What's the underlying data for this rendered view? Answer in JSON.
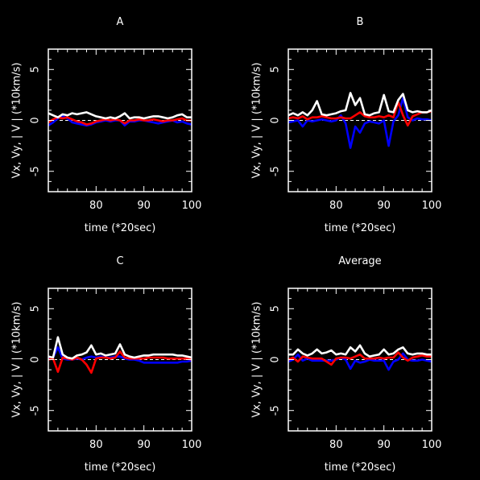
{
  "chart_data": [
    {
      "type": "line",
      "title": "A",
      "xlabel": "time (*20sec)",
      "ylabel": "Vx, Vy, | V | (*10km/s)",
      "xlim": [
        70,
        100
      ],
      "ylim": [
        -7,
        7
      ],
      "xticks": [
        80,
        90,
        100
      ],
      "yticks": [
        -5,
        0,
        5
      ],
      "zero_line": "dashed",
      "x": [
        70,
        71,
        72,
        73,
        74,
        75,
        76,
        77,
        78,
        79,
        80,
        81,
        82,
        83,
        84,
        85,
        86,
        87,
        88,
        89,
        90,
        91,
        92,
        93,
        94,
        95,
        96,
        97,
        98,
        99,
        100
      ],
      "series": [
        {
          "color": "#ffffff",
          "values": [
            0.7,
            0.5,
            0.3,
            0.6,
            0.5,
            0.7,
            0.6,
            0.7,
            0.8,
            0.6,
            0.4,
            0.3,
            0.2,
            0.3,
            0.2,
            0.4,
            0.7,
            0.2,
            0.3,
            0.3,
            0.2,
            0.3,
            0.4,
            0.4,
            0.3,
            0.2,
            0.3,
            0.5,
            0.6,
            0.3,
            0.3
          ]
        },
        {
          "color": "#ff0000",
          "values": [
            -0.2,
            0.1,
            0.3,
            0.2,
            0.3,
            0.1,
            -0.1,
            -0.2,
            -0.4,
            -0.3,
            -0.1,
            0.0,
            0.1,
            0.0,
            0.1,
            0.0,
            -0.3,
            0.0,
            0.0,
            0.1,
            0.0,
            0.0,
            0.1,
            0.0,
            -0.1,
            0.0,
            0.0,
            0.1,
            0.2,
            0.0,
            0.0
          ]
        },
        {
          "color": "#0000ff",
          "values": [
            -0.5,
            -0.2,
            0.2,
            0.4,
            0.2,
            -0.2,
            -0.3,
            -0.4,
            -0.5,
            -0.4,
            -0.2,
            -0.1,
            0.0,
            -0.1,
            0.0,
            0.0,
            -0.5,
            -0.1,
            -0.1,
            0.0,
            0.0,
            -0.1,
            -0.2,
            -0.3,
            -0.2,
            -0.1,
            0.0,
            -0.2,
            -0.1,
            -0.3,
            -0.4
          ]
        }
      ]
    },
    {
      "type": "line",
      "title": "B",
      "xlabel": "time (*20sec)",
      "ylabel": "Vx, Vy, | V | (*10km/s)",
      "xlim": [
        70,
        100
      ],
      "ylim": [
        -7,
        7
      ],
      "xticks": [
        80,
        90,
        100
      ],
      "yticks": [
        -5,
        0,
        5
      ],
      "zero_line": "dashed",
      "x": [
        70,
        71,
        72,
        73,
        74,
        75,
        76,
        77,
        78,
        79,
        80,
        81,
        82,
        83,
        84,
        85,
        86,
        87,
        88,
        89,
        90,
        91,
        92,
        93,
        94,
        95,
        96,
        97,
        98,
        99,
        100
      ],
      "series": [
        {
          "color": "#ffffff",
          "values": [
            0.5,
            0.7,
            0.5,
            0.8,
            0.5,
            1.0,
            1.9,
            0.6,
            0.5,
            0.6,
            0.7,
            0.9,
            1.0,
            2.7,
            1.5,
            2.2,
            0.6,
            0.5,
            0.7,
            0.8,
            2.5,
            0.9,
            0.8,
            2.0,
            2.6,
            1.0,
            0.8,
            0.9,
            0.8,
            0.8,
            1.0
          ]
        },
        {
          "color": "#ff0000",
          "values": [
            0.2,
            0.3,
            0.2,
            0.4,
            0.1,
            0.3,
            0.3,
            0.4,
            0.3,
            0.2,
            0.2,
            0.3,
            0.2,
            0.2,
            0.5,
            0.8,
            0.4,
            0.3,
            0.3,
            0.4,
            0.3,
            0.5,
            0.3,
            1.8,
            0.5,
            -0.5,
            0.4,
            0.6,
            0.8,
            0.8,
            0.9
          ]
        },
        {
          "color": "#0000ff",
          "values": [
            -0.2,
            -0.1,
            0.0,
            -0.6,
            0.0,
            -0.1,
            0.0,
            0.1,
            0.0,
            -0.1,
            0.0,
            0.5,
            -0.3,
            -2.7,
            -0.6,
            -1.2,
            -0.3,
            -0.1,
            -0.2,
            -0.3,
            0.0,
            -2.5,
            -0.1,
            0.5,
            2.2,
            0.3,
            0.0,
            0.2,
            0.1,
            0.1,
            0.0
          ]
        }
      ]
    },
    {
      "type": "line",
      "title": "C",
      "xlabel": "time (*20sec)",
      "ylabel": "Vx, Vy, | V | (*10km/s)",
      "xlim": [
        70,
        100
      ],
      "ylim": [
        -7,
        7
      ],
      "xticks": [
        80,
        90,
        100
      ],
      "yticks": [
        -5,
        0,
        5
      ],
      "zero_line": "dashed",
      "x": [
        70,
        71,
        72,
        73,
        74,
        75,
        76,
        77,
        78,
        79,
        80,
        81,
        82,
        83,
        84,
        85,
        86,
        87,
        88,
        89,
        90,
        91,
        92,
        93,
        94,
        95,
        96,
        97,
        98,
        99,
        100
      ],
      "series": [
        {
          "color": "#ffffff",
          "values": [
            0.3,
            0.2,
            2.2,
            0.5,
            0.2,
            0.1,
            0.4,
            0.5,
            0.7,
            1.4,
            0.5,
            0.6,
            0.4,
            0.5,
            0.6,
            1.5,
            0.5,
            0.3,
            0.2,
            0.3,
            0.4,
            0.4,
            0.5,
            0.5,
            0.5,
            0.5,
            0.5,
            0.4,
            0.4,
            0.3,
            0.2
          ]
        },
        {
          "color": "#ff0000",
          "values": [
            0.0,
            0.1,
            -1.2,
            0.2,
            0.1,
            0.0,
            0.2,
            0.0,
            -0.5,
            -1.3,
            0.1,
            0.2,
            0.2,
            0.1,
            0.2,
            0.8,
            0.2,
            0.1,
            0.1,
            0.1,
            0.1,
            0.2,
            0.2,
            0.2,
            0.2,
            0.1,
            0.1,
            0.1,
            0.1,
            0.1,
            0.0
          ]
        },
        {
          "color": "#0000ff",
          "values": [
            0.1,
            0.2,
            1.2,
            0.1,
            0.0,
            0.0,
            0.1,
            0.0,
            0.2,
            0.3,
            0.2,
            0.3,
            0.2,
            0.2,
            0.3,
            0.3,
            0.1,
            0.0,
            0.0,
            -0.1,
            -0.3,
            -0.3,
            -0.3,
            -0.3,
            -0.3,
            -0.3,
            -0.3,
            -0.3,
            -0.2,
            -0.2,
            -0.1
          ]
        }
      ]
    },
    {
      "type": "line",
      "title": "Average",
      "xlabel": "time (*20sec)",
      "ylabel": "Vx, Vy, | V | (*10km/s)",
      "xlim": [
        70,
        100
      ],
      "ylim": [
        -7,
        7
      ],
      "xticks": [
        80,
        90,
        100
      ],
      "yticks": [
        -5,
        0,
        5
      ],
      "zero_line": "dashed",
      "x": [
        70,
        71,
        72,
        73,
        74,
        75,
        76,
        77,
        78,
        79,
        80,
        81,
        82,
        83,
        84,
        85,
        86,
        87,
        88,
        89,
        90,
        91,
        92,
        93,
        94,
        95,
        96,
        97,
        98,
        99,
        100
      ],
      "series": [
        {
          "color": "#ffffff",
          "values": [
            0.5,
            0.5,
            1.0,
            0.6,
            0.4,
            0.6,
            1.0,
            0.6,
            0.7,
            0.9,
            0.5,
            0.6,
            0.5,
            1.2,
            0.8,
            1.4,
            0.6,
            0.3,
            0.4,
            0.5,
            1.0,
            0.5,
            0.6,
            1.0,
            1.2,
            0.6,
            0.5,
            0.6,
            0.6,
            0.5,
            0.5
          ]
        },
        {
          "color": "#ff0000",
          "values": [
            0.0,
            0.2,
            -0.2,
            0.3,
            0.2,
            0.1,
            0.1,
            0.1,
            -0.2,
            -0.5,
            0.1,
            0.2,
            0.2,
            0.1,
            0.3,
            0.5,
            0.1,
            0.1,
            0.1,
            0.2,
            0.1,
            0.2,
            0.2,
            0.7,
            0.2,
            -0.1,
            0.2,
            0.3,
            0.4,
            0.3,
            0.3
          ]
        },
        {
          "color": "#0000ff",
          "values": [
            -0.2,
            0.0,
            0.5,
            -0.1,
            0.1,
            -0.1,
            -0.1,
            -0.1,
            -0.1,
            -0.1,
            0.0,
            0.2,
            0.0,
            -0.9,
            -0.1,
            -0.3,
            -0.2,
            0.0,
            -0.1,
            -0.1,
            -0.1,
            -1.0,
            -0.2,
            0.0,
            0.6,
            0.0,
            -0.1,
            -0.1,
            0.0,
            -0.1,
            -0.2
          ]
        }
      ]
    }
  ]
}
